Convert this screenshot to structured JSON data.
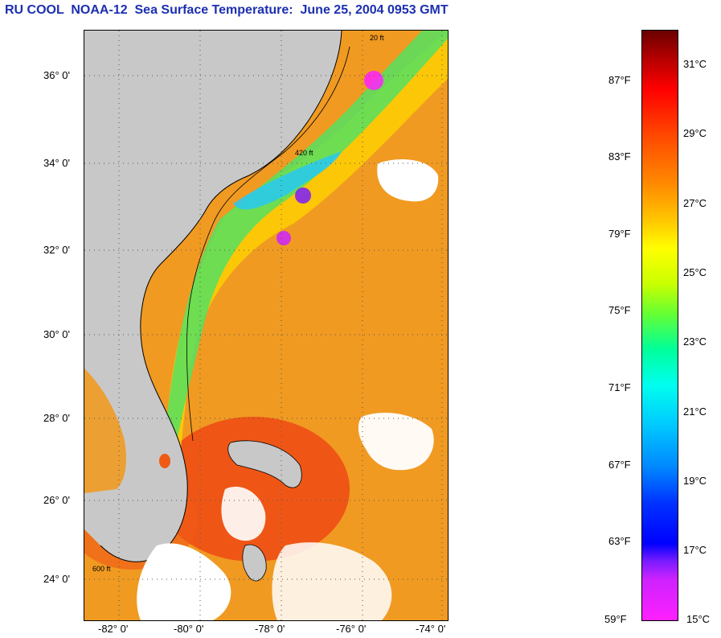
{
  "title": "RU COOL  NOAA-12  Sea Surface Temperature:  June 25, 2004 0953 GMT",
  "map": {
    "lat_labels": [
      "36° 0'",
      "34° 0'",
      "32° 0'",
      "30° 0'",
      "28° 0'",
      "26° 0'",
      "24° 0'"
    ],
    "lon_labels": [
      "-82° 0'",
      "-80° 0'",
      "-78° 0'",
      "-76° 0'",
      "-74° 0'"
    ],
    "land_color": "#c8c8c8",
    "ocean_base_color": "#f09a22",
    "cloud_color": "#ffffff",
    "isobath_labels": [
      "20 ft",
      "420 ft",
      "600 ft"
    ]
  },
  "colorbar": {
    "fahrenheit_labels": [
      "87°F",
      "83°F",
      "79°F",
      "75°F",
      "71°F",
      "67°F",
      "63°F",
      "59°F"
    ],
    "celsius_labels": [
      "31°C",
      "29°C",
      "27°C",
      "25°C",
      "23°C",
      "21°C",
      "19°C",
      "17°C",
      "15°C"
    ],
    "range_f": [
      59,
      89
    ],
    "range_c": [
      15,
      32
    ]
  }
}
